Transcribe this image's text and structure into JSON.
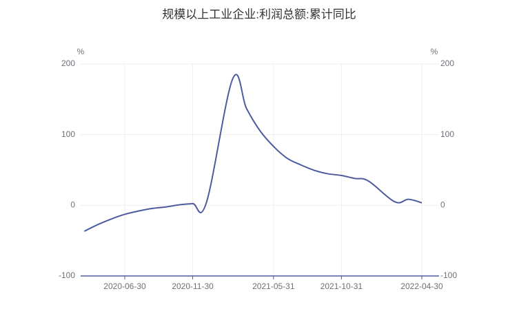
{
  "chart_data": {
    "type": "line",
    "title": "规模以上工业企业:利润总额:累计同比",
    "y_unit": "%",
    "y2_unit": "%",
    "x": [
      "2020-03-31",
      "2020-04-30",
      "2020-05-31",
      "2020-06-30",
      "2020-07-31",
      "2020-08-31",
      "2020-09-30",
      "2020-10-31",
      "2020-11-30",
      "2020-12-31",
      "2021-02-28",
      "2021-03-31",
      "2021-04-30",
      "2021-05-31",
      "2021-06-30",
      "2021-07-31",
      "2021-08-31",
      "2021-09-30",
      "2021-10-31",
      "2021-11-30",
      "2021-12-31",
      "2022-02-28",
      "2022-03-31",
      "2022-04-30"
    ],
    "series": [
      {
        "name": "利润总额:累计同比",
        "color": "#4e5a9e",
        "values": [
          -36.7,
          -27.4,
          -19.3,
          -12.8,
          -8.1,
          -4.4,
          -2.4,
          0.7,
          2.4,
          4.1,
          178.9,
          137.3,
          106.0,
          83.4,
          66.9,
          57.3,
          49.5,
          44.7,
          42.2,
          38.0,
          34.3,
          5.0,
          8.5,
          3.5
        ]
      }
    ],
    "xticks": [
      "2020-06-30",
      "2020-11-30",
      "2021-05-31",
      "2021-10-31",
      "2022-04-30"
    ],
    "ylim": [
      -100,
      200
    ],
    "yticks": [
      -100,
      0,
      100,
      200
    ],
    "y2lim": [
      -100,
      200
    ],
    "y2ticks": [
      -100,
      0,
      100,
      200
    ],
    "grid": true
  }
}
